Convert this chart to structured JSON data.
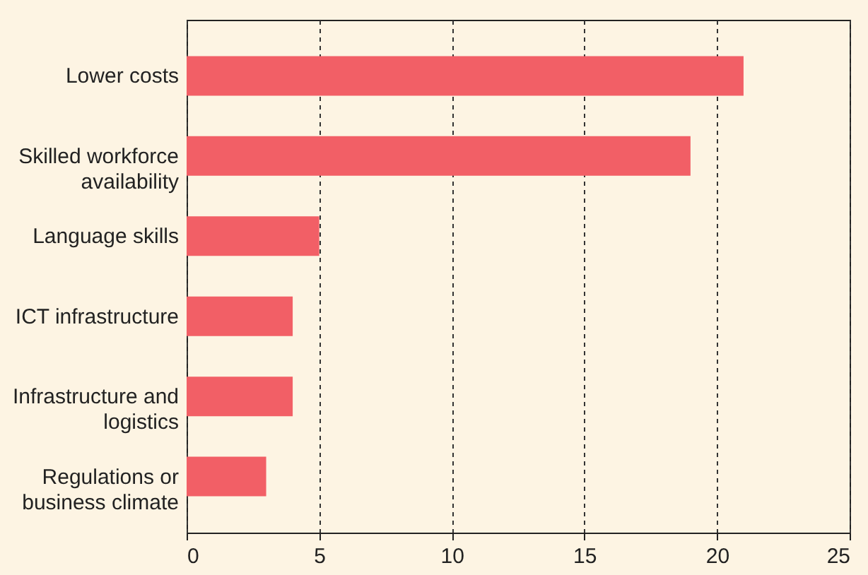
{
  "chart_data": {
    "type": "bar",
    "orientation": "horizontal",
    "categories": [
      "Lower costs",
      "Skilled workforce\navailability",
      "Language skills",
      "ICT infrastructure",
      "Infrastructure and\nlogistics",
      "Regulations or\nbusiness climate"
    ],
    "values": [
      21,
      19,
      5,
      4,
      4,
      3
    ],
    "color": "#f25f66",
    "xlim": [
      0,
      25
    ],
    "xticks": [
      0,
      5,
      10,
      15,
      20,
      25
    ],
    "grid": "x"
  }
}
